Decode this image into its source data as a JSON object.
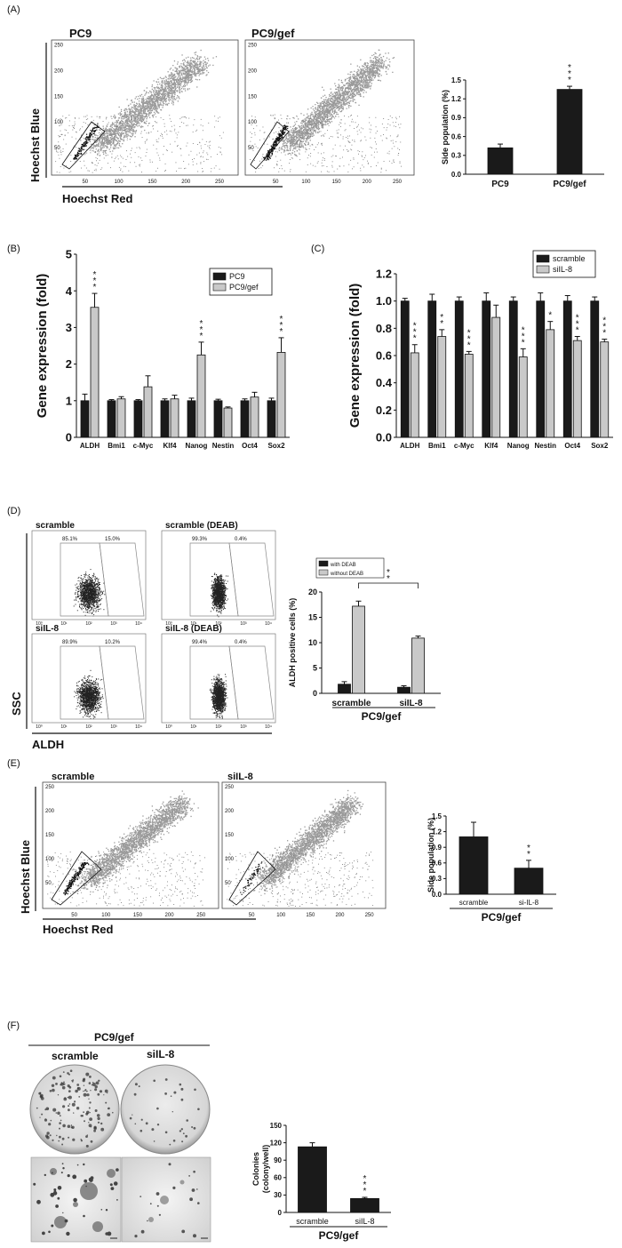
{
  "figure": {
    "panel_labels": [
      "(A)",
      "(B)",
      "(C)",
      "(D)",
      "(E)",
      "(F)"
    ],
    "colors": {
      "black_bar": "#1a1a1a",
      "gray_bar": "#c9c9c9",
      "flow_gray": "#9a9a9a",
      "dense_black": "#111111"
    }
  },
  "panelA": {
    "flow": {
      "plot_titles": [
        "PC9",
        "PC9/gef"
      ],
      "ylabel": "Hoechst Blue",
      "xlabel": "Hoechst Red",
      "xticks": [
        "50",
        "100",
        "150",
        "200",
        "250"
      ],
      "yticks": [
        "250",
        "200",
        "150",
        "100",
        "50"
      ]
    }
  },
  "panelD": {
    "flow": {
      "plot_titles": [
        "scramble",
        "scramble (DEAB)",
        "siIL-8",
        "siIL-8 (DEAB)"
      ],
      "gate_percents": [
        [
          "85.1%",
          "15.0%"
        ],
        [
          "99.3%",
          "0.4%"
        ],
        [
          "89.9%",
          "10.2%"
        ],
        [
          "99.4%",
          "0.4%"
        ]
      ],
      "xlabel": "ALDH",
      "ylabel": "SSC",
      "xticks": [
        "10⁰",
        "10¹",
        "10²",
        "10³",
        "10⁴"
      ]
    }
  },
  "panelE": {
    "flow": {
      "plot_titles": [
        "scramble",
        "siIL-8"
      ],
      "ylabel": "Hoechst Blue",
      "xlabel": "Hoechst Red",
      "xticks": [
        "50",
        "100",
        "150",
        "200",
        "250"
      ],
      "yticks": [
        "250",
        "200",
        "150",
        "100",
        "50"
      ]
    }
  },
  "panelF": {
    "group_label": "PC9/gef",
    "image_labels": [
      "scramble",
      "siIL-8"
    ]
  },
  "chart_data": [
    {
      "id": "A",
      "type": "bar",
      "categories": [
        "PC9",
        "PC9/gef"
      ],
      "values": [
        0.42,
        1.35
      ],
      "errors": [
        0.06,
        0.05
      ],
      "significance": [
        "",
        "***"
      ],
      "title": "",
      "xlabel": "",
      "ylabel": "Side population (%)",
      "ylim": [
        0,
        1.5
      ],
      "yticks": [
        "0.0",
        "0.3",
        "0.6",
        "0.9",
        "1.2",
        "1.5"
      ],
      "group_label": ""
    },
    {
      "id": "B",
      "type": "bar",
      "categories": [
        "ALDH",
        "Bmi1",
        "c-Myc",
        "Klf4",
        "Nanog",
        "Nestin",
        "Oct4",
        "Sox2"
      ],
      "series": [
        {
          "name": "PC9",
          "values": [
            1.0,
            1.0,
            1.0,
            1.0,
            1.0,
            1.0,
            1.0,
            1.0
          ],
          "errors": [
            0.18,
            0.03,
            0.03,
            0.05,
            0.07,
            0.04,
            0.05,
            0.07
          ]
        },
        {
          "name": "PC9/gef",
          "values": [
            3.55,
            1.05,
            1.38,
            1.05,
            2.25,
            0.8,
            1.1,
            2.32
          ],
          "errors": [
            0.38,
            0.06,
            0.3,
            0.1,
            0.35,
            0.03,
            0.13,
            0.4
          ]
        }
      ],
      "significance": [
        "***",
        "",
        "",
        "",
        "***",
        "",
        "",
        "***"
      ],
      "xlabel": "",
      "ylabel": "Gene expression (fold)",
      "ylim": [
        0,
        5
      ],
      "yticks": [
        "0",
        "1",
        "2",
        "3",
        "4",
        "5"
      ],
      "legend": "top-right"
    },
    {
      "id": "C",
      "type": "bar",
      "categories": [
        "ALDH",
        "Bmi1",
        "c-Myc",
        "Klf4",
        "Nanog",
        "Nestin",
        "Oct4",
        "Sox2"
      ],
      "series": [
        {
          "name": "scramble",
          "values": [
            1.0,
            1.0,
            1.0,
            1.0,
            1.0,
            1.0,
            1.0,
            1.0
          ],
          "errors": [
            0.02,
            0.05,
            0.03,
            0.06,
            0.03,
            0.06,
            0.04,
            0.03
          ]
        },
        {
          "name": "siIL-8",
          "values": [
            0.62,
            0.74,
            0.61,
            0.88,
            0.59,
            0.79,
            0.71,
            0.7
          ],
          "errors": [
            0.06,
            0.05,
            0.02,
            0.09,
            0.06,
            0.06,
            0.03,
            0.02
          ]
        }
      ],
      "significance": [
        "***",
        "**",
        "***",
        "",
        "***",
        "*",
        "***",
        "***"
      ],
      "xlabel": "",
      "ylabel": "Gene expression (fold)",
      "ylim": [
        0,
        1.2
      ],
      "yticks": [
        "0.0",
        "0.2",
        "0.4",
        "0.6",
        "0.8",
        "1.0",
        "1.2"
      ],
      "legend": "top"
    },
    {
      "id": "D",
      "type": "bar",
      "categories": [
        "scramble",
        "siIL-8"
      ],
      "series": [
        {
          "name": "with DEAB",
          "values": [
            1.8,
            1.2
          ],
          "errors": [
            0.5,
            0.3
          ]
        },
        {
          "name": "without DEAB",
          "values": [
            17.2,
            10.9
          ],
          "errors": [
            1.0,
            0.4
          ]
        }
      ],
      "significance_bracket": "**",
      "xlabel": "PC9/gef",
      "ylabel": "ALDH positive cells (%)",
      "ylim": [
        0,
        20
      ],
      "yticks": [
        "0",
        "5",
        "10",
        "15",
        "20"
      ],
      "legend": "top-left"
    },
    {
      "id": "E",
      "type": "bar",
      "categories": [
        "scramble",
        "si-IL-8"
      ],
      "values": [
        1.1,
        0.5
      ],
      "errors": [
        0.28,
        0.15
      ],
      "significance": [
        "",
        "**"
      ],
      "xlabel": "",
      "ylabel": "Side population (%)",
      "ylim": [
        0,
        1.5
      ],
      "yticks": [
        "0.0",
        "0.3",
        "0.6",
        "0.9",
        "1.2",
        "1.5"
      ],
      "group_label": "PC9/gef"
    },
    {
      "id": "F",
      "type": "bar",
      "categories": [
        "scramble",
        "siIL-8"
      ],
      "values": [
        113,
        24
      ],
      "errors": [
        7,
        2
      ],
      "significance": [
        "",
        "***"
      ],
      "xlabel": "",
      "ylabel": "Colonies (colony/well)",
      "ylim": [
        0,
        150
      ],
      "yticks": [
        "0",
        "30",
        "60",
        "90",
        "120",
        "150"
      ],
      "group_label": "PC9/gef"
    }
  ]
}
